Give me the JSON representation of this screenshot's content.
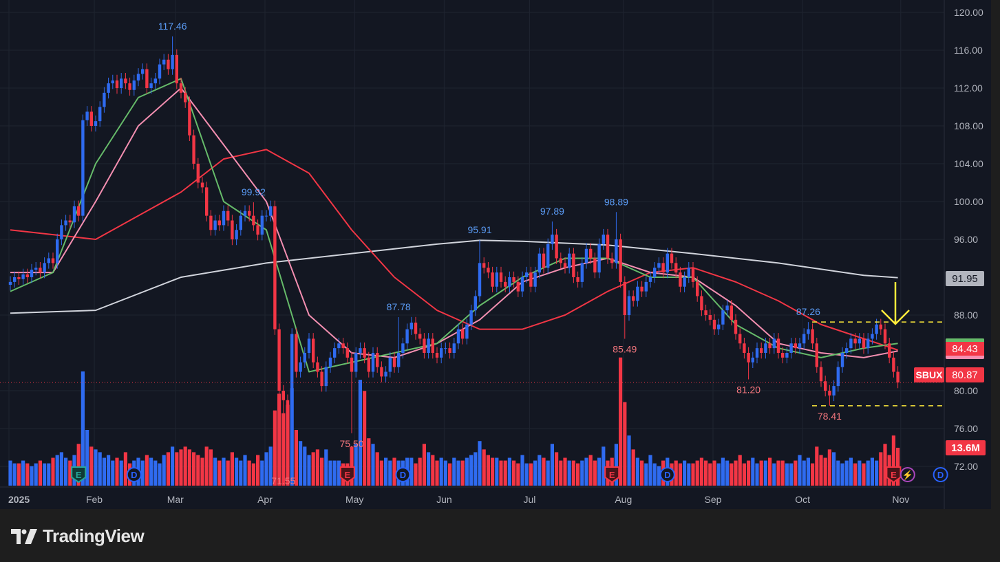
{
  "chart_data": {
    "type": "candlestick",
    "symbol": "SBUX",
    "x_tick_labels": [
      {
        "label": "2025",
        "bar": 0
      },
      {
        "label": "Feb",
        "bar": 20
      },
      {
        "label": "Mar",
        "bar": 39
      },
      {
        "label": "Apr",
        "bar": 60
      },
      {
        "label": "May",
        "bar": 81
      },
      {
        "label": "Jun",
        "bar": 102
      },
      {
        "label": "Jul",
        "bar": 122
      },
      {
        "label": "Aug",
        "bar": 144
      },
      {
        "label": "Sep",
        "bar": 165
      },
      {
        "label": "Oct",
        "bar": 186
      },
      {
        "label": "Nov",
        "bar": 209
      }
    ],
    "y_tick_labels": [
      "120.00",
      "116.00",
      "112.00",
      "108.00",
      "104.00",
      "100.00",
      "96.00",
      "88.00",
      "80.00",
      "76.00",
      "72.00"
    ],
    "y_ticks": [
      120,
      116,
      112,
      108,
      104,
      100,
      96,
      88,
      80,
      76,
      72
    ],
    "ylim": [
      69.5,
      121.3
    ],
    "grid": true,
    "colors": {
      "up": "#2f6bf0",
      "down": "#f23645",
      "background": "#131722",
      "ma_fast": "#66bb6a",
      "ma_mid": "#f48fb1",
      "ma_slow": "#f23645",
      "ma_long": "#d1d4dc",
      "annotation": "#ffeb3b"
    },
    "closes": [
      91.5,
      92,
      91.8,
      92.3,
      92,
      92.8,
      93,
      92.5,
      93.5,
      94,
      93.5,
      96,
      97.5,
      98,
      97.8,
      99.5,
      98.5,
      108.6,
      109.5,
      108,
      108.5,
      110,
      111.5,
      112.5,
      112.8,
      112,
      113,
      112.5,
      111.8,
      112.8,
      113.5,
      114,
      112,
      112.5,
      113,
      114.5,
      115,
      114,
      115.5,
      112.5,
      111.5,
      110.5,
      107,
      104,
      102,
      101.5,
      98.5,
      97,
      98,
      97.5,
      99,
      98,
      96,
      97,
      98.5,
      99,
      98.5,
      97.5,
      96.5,
      98.5,
      98.5,
      99.5,
      86.5,
      80,
      79,
      77,
      86,
      82,
      83,
      84,
      85.5,
      83,
      82,
      80.5,
      82.5,
      83.5,
      84.5,
      85,
      84.5,
      83.5,
      82,
      84,
      84.5,
      83.5,
      82,
      84,
      82.5,
      81.5,
      82,
      83.5,
      82.5,
      84,
      85,
      86.5,
      87.2,
      86,
      85.5,
      84,
      85.5,
      84,
      83.5,
      84.5,
      84.5,
      84,
      85,
      86.5,
      85.5,
      87,
      88.5,
      90,
      93.5,
      93,
      92.5,
      91,
      92.5,
      91.5,
      91,
      92,
      91.5,
      90.5,
      92,
      92.5,
      91,
      92.5,
      94.5,
      93,
      95.5,
      96.5,
      94,
      93.5,
      93,
      94.5,
      92,
      91.5,
      93.5,
      95,
      94,
      92.5,
      95.5,
      96.5,
      94,
      93.5,
      96,
      91.5,
      88,
      90,
      89.5,
      91,
      90.5,
      91.5,
      92,
      93,
      93.5,
      92.5,
      94.5,
      93.5,
      92.5,
      91,
      92,
      93,
      91.5,
      90,
      88.5,
      88,
      87.5,
      86.5,
      87,
      88.5,
      89,
      87.5,
      86,
      85,
      84,
      83,
      83.5,
      84.5,
      84,
      85,
      84.5,
      85.5,
      84,
      83.5,
      84,
      85,
      84.5,
      85,
      86,
      86.5,
      85,
      82.5,
      81,
      80,
      79.5,
      80.5,
      82.5,
      84,
      84.5,
      85.5,
      85,
      85.5,
      84.5,
      85.5,
      86,
      87,
      86.5,
      85,
      83.5,
      82,
      80.87
    ],
    "volumes_millions": [
      9,
      8,
      8,
      9,
      8,
      7,
      8,
      9,
      8,
      8,
      10,
      11,
      12,
      10,
      9,
      11,
      15,
      41,
      20,
      14,
      13,
      12,
      10,
      11,
      9,
      10,
      9,
      12,
      8,
      9,
      10,
      9,
      11,
      10,
      9,
      8,
      11,
      12,
      14,
      12,
      13,
      14,
      13,
      12,
      11,
      10,
      14,
      13,
      10,
      9,
      10,
      9,
      12,
      10,
      9,
      11,
      9,
      8,
      11,
      9,
      12,
      14,
      27,
      33,
      26,
      29,
      35,
      20,
      16,
      14,
      11,
      12,
      13,
      10,
      13,
      9,
      9,
      9,
      8,
      8,
      14,
      15,
      38,
      34,
      17,
      15,
      12,
      9,
      10,
      9,
      10,
      9,
      9,
      10,
      10,
      8,
      10,
      15,
      12,
      11,
      9,
      10,
      9,
      8,
      10,
      9,
      9,
      10,
      11,
      12,
      16,
      13,
      11,
      10,
      10,
      9,
      9,
      10,
      9,
      8,
      11,
      8,
      8,
      9,
      11,
      10,
      9,
      15,
      12,
      9,
      10,
      9,
      9,
      8,
      9,
      10,
      11,
      9,
      10,
      14,
      9,
      10,
      15,
      46,
      30,
      18,
      13,
      10,
      9,
      8,
      11,
      8,
      7,
      9,
      10,
      8,
      9,
      8,
      9,
      8,
      8,
      9,
      10,
      9,
      8,
      9,
      8,
      10,
      9,
      8,
      9,
      11,
      8,
      9,
      10,
      8,
      9,
      9,
      10,
      8,
      9,
      9,
      8,
      8,
      9,
      11,
      9,
      10,
      8,
      14,
      11,
      10,
      13,
      12,
      9,
      8,
      9,
      10,
      8,
      9,
      8,
      9,
      10,
      9,
      12,
      15,
      11,
      18,
      13.6
    ],
    "high_labels": [
      {
        "bar": 38,
        "value": 117.46,
        "text": "117.46"
      },
      {
        "bar": 57,
        "value": 99.92,
        "text": "99.92"
      },
      {
        "bar": 91,
        "value": 87.78,
        "text": "87.78"
      },
      {
        "bar": 110,
        "value": 95.91,
        "text": "95.91"
      },
      {
        "bar": 127,
        "value": 97.89,
        "text": "97.89"
      },
      {
        "bar": 142,
        "value": 98.89,
        "text": "98.89"
      },
      {
        "bar": 187,
        "value": 87.26,
        "text": "87.26"
      }
    ],
    "low_labels": [
      {
        "bar": 64,
        "value": 71.55,
        "text": "71.55"
      },
      {
        "bar": 80,
        "value": 75.5,
        "text": "75.50"
      },
      {
        "bar": 144,
        "value": 85.49,
        "text": "85.49"
      },
      {
        "bar": 173,
        "value": 81.2,
        "text": "81.20"
      },
      {
        "bar": 192,
        "value": 78.41,
        "text": "78.41"
      }
    ],
    "moving_averages": [
      {
        "key": "ma_long",
        "points": [
          [
            0,
            88.2
          ],
          [
            20,
            88.5
          ],
          [
            40,
            92
          ],
          [
            60,
            93.5
          ],
          [
            80,
            94.5
          ],
          [
            100,
            95.5
          ],
          [
            110,
            95.9
          ],
          [
            120,
            95.8
          ],
          [
            140,
            95.4
          ],
          [
            160,
            94.5
          ],
          [
            180,
            93.5
          ],
          [
            200,
            92.2
          ],
          [
            208,
            91.95
          ]
        ]
      },
      {
        "key": "ma_slow",
        "points": [
          [
            0,
            97
          ],
          [
            10,
            96.5
          ],
          [
            20,
            96
          ],
          [
            30,
            98.5
          ],
          [
            40,
            101
          ],
          [
            50,
            104.5
          ],
          [
            60,
            105.5
          ],
          [
            70,
            103
          ],
          [
            80,
            97
          ],
          [
            90,
            92
          ],
          [
            100,
            88.5
          ],
          [
            110,
            86.5
          ],
          [
            120,
            86.5
          ],
          [
            130,
            88
          ],
          [
            140,
            90.5
          ],
          [
            150,
            92.5
          ],
          [
            160,
            93
          ],
          [
            170,
            91.5
          ],
          [
            180,
            89.5
          ],
          [
            190,
            87
          ],
          [
            200,
            85.5
          ],
          [
            208,
            84.3
          ]
        ]
      },
      {
        "key": "ma_mid",
        "points": [
          [
            0,
            92.5
          ],
          [
            10,
            92.5
          ],
          [
            20,
            100
          ],
          [
            30,
            108
          ],
          [
            40,
            112
          ],
          [
            50,
            106
          ],
          [
            60,
            100
          ],
          [
            70,
            88
          ],
          [
            80,
            84
          ],
          [
            90,
            83.5
          ],
          [
            100,
            85
          ],
          [
            110,
            87.5
          ],
          [
            120,
            91.5
          ],
          [
            130,
            93
          ],
          [
            140,
            94
          ],
          [
            150,
            92.5
          ],
          [
            160,
            92
          ],
          [
            170,
            89
          ],
          [
            180,
            85
          ],
          [
            190,
            84
          ],
          [
            200,
            83.5
          ],
          [
            208,
            84.2
          ]
        ]
      },
      {
        "key": "ma_fast",
        "points": [
          [
            0,
            90.5
          ],
          [
            10,
            92.5
          ],
          [
            20,
            104
          ],
          [
            30,
            111
          ],
          [
            40,
            113
          ],
          [
            50,
            100
          ],
          [
            60,
            97
          ],
          [
            70,
            82
          ],
          [
            80,
            83
          ],
          [
            90,
            84
          ],
          [
            100,
            85
          ],
          [
            110,
            89
          ],
          [
            120,
            92
          ],
          [
            130,
            94
          ],
          [
            140,
            94
          ],
          [
            150,
            92
          ],
          [
            160,
            92
          ],
          [
            170,
            87
          ],
          [
            180,
            84.5
          ],
          [
            190,
            83.5
          ],
          [
            200,
            84.5
          ],
          [
            208,
            85
          ]
        ]
      }
    ],
    "horizontal_levels": [
      87.26,
      78.41
    ],
    "events": [
      {
        "bar": 16,
        "type": "E",
        "tone": "green"
      },
      {
        "bar": 29,
        "type": "D",
        "tone": "blue"
      },
      {
        "bar": 79,
        "type": "E",
        "tone": "red"
      },
      {
        "bar": 92,
        "type": "D",
        "tone": "blue"
      },
      {
        "bar": 141,
        "type": "E",
        "tone": "red"
      },
      {
        "bar": 154,
        "type": "D",
        "tone": "blue"
      },
      {
        "bar": 207,
        "type": "E",
        "tone": "red"
      },
      {
        "bar": 209,
        "type": "⚡",
        "tone": "purple"
      },
      {
        "bar": 218,
        "type": "D",
        "tone": "blue"
      }
    ],
    "badges": {
      "ma_long_value": "91.95",
      "ma_value": "84.43",
      "symbol": "SBUX",
      "last_price": "80.87",
      "last_volume": "13.6M"
    }
  },
  "footer": {
    "brand": "TradingView"
  }
}
